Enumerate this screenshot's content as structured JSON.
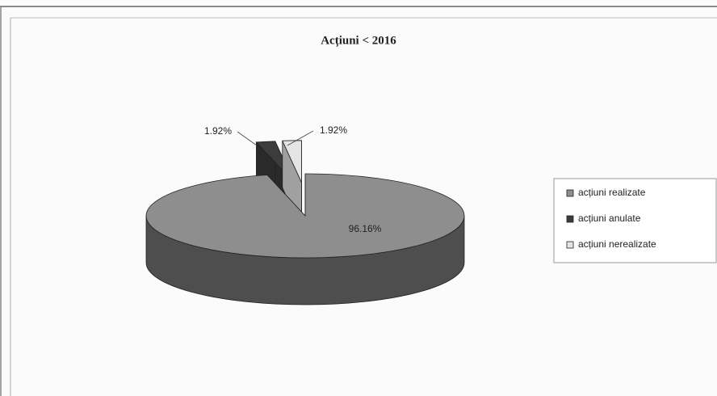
{
  "chart_data": {
    "type": "pie3d",
    "title": "Acțiuni < 2016",
    "categories": [
      "acțiuni realizate",
      "acțiuni anulate",
      "acțiuni nerealizate"
    ],
    "values": [
      96.16,
      1.92,
      1.92
    ],
    "value_labels": [
      "96.16%",
      "1.92%",
      "1.92%"
    ],
    "colors": [
      "#8e8e8e",
      "#3c3c3c",
      "#e4e4e4"
    ],
    "legend": "right"
  }
}
